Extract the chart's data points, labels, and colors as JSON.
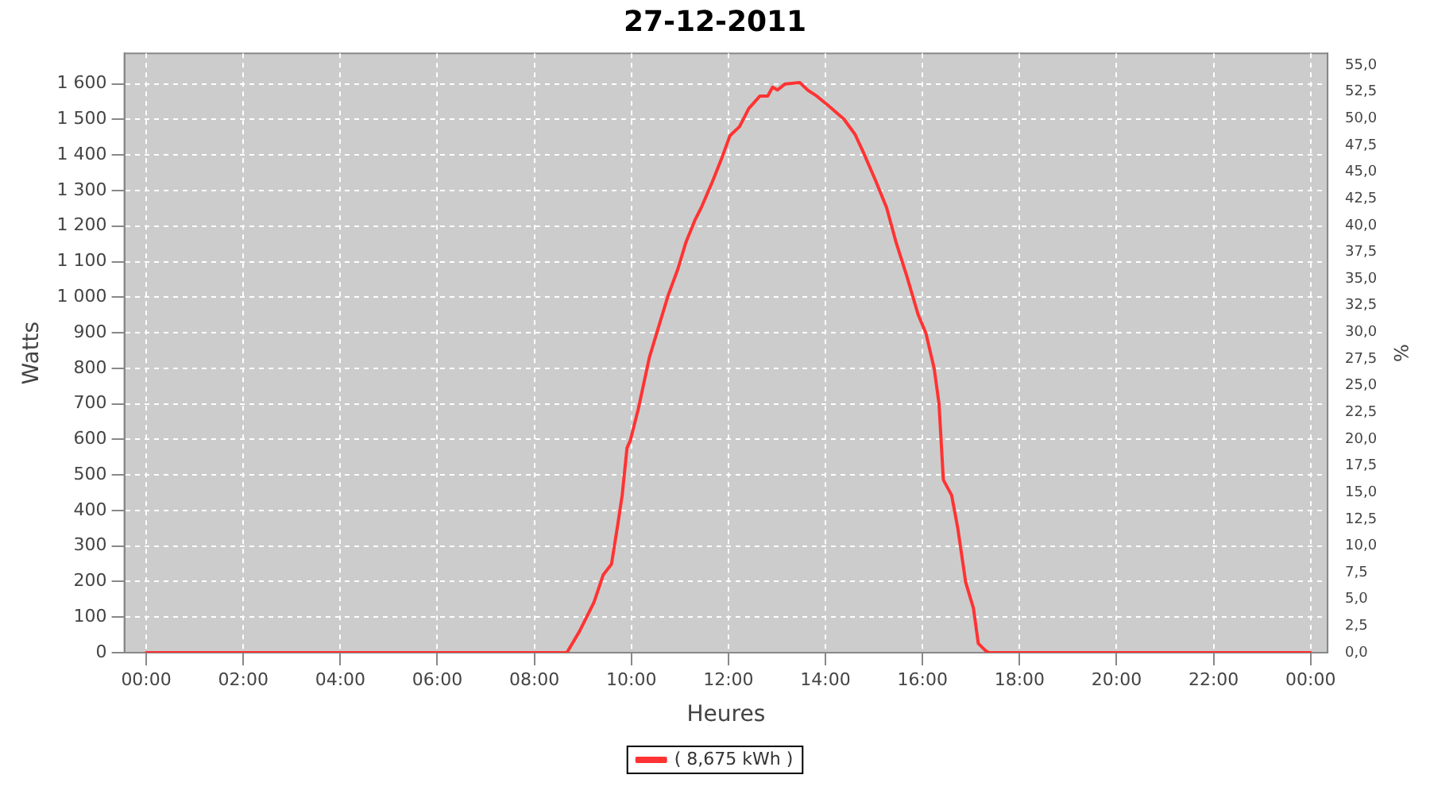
{
  "chart_data": {
    "type": "line",
    "title": "27-12-2011",
    "xlabel": "Heures",
    "ylabel": "Watts",
    "y2label": "%",
    "x": [
      0,
      8.67,
      8.93,
      9.23,
      9.42,
      9.59,
      9.72,
      9.81,
      9.91,
      9.98,
      10.14,
      10.37,
      10.56,
      10.76,
      10.96,
      11.12,
      11.31,
      11.44,
      11.67,
      11.87,
      12.03,
      12.23,
      12.42,
      12.65,
      12.81,
      12.91,
      13.01,
      13.17,
      13.47,
      13.63,
      13.82,
      14.05,
      14.38,
      14.61,
      14.77,
      15.03,
      15.26,
      15.45,
      15.68,
      15.91,
      16.07,
      16.24,
      16.34,
      16.43,
      16.6,
      16.73,
      16.89,
      17.05,
      17.15,
      17.31,
      17.38,
      24
    ],
    "series": [
      {
        "name": "( 8,675 kWh )",
        "color": "#ff3333",
        "values": [
          0,
          0,
          60,
          142,
          219,
          249,
          361,
          443,
          576,
          598,
          684,
          830,
          916,
          1006,
          1080,
          1153,
          1217,
          1252,
          1325,
          1394,
          1454,
          1480,
          1531,
          1566,
          1566,
          1591,
          1583,
          1600,
          1604,
          1583,
          1566,
          1540,
          1501,
          1458,
          1411,
          1329,
          1252,
          1157,
          1058,
          951,
          899,
          800,
          701,
          486,
          443,
          348,
          198,
          125,
          26,
          4,
          0,
          0
        ]
      }
    ],
    "xlim": [
      -0.45,
      24.35
    ],
    "xticks": [
      {
        "value": 0,
        "label": "00:00"
      },
      {
        "value": 2,
        "label": "02:00"
      },
      {
        "value": 4,
        "label": "04:00"
      },
      {
        "value": 6,
        "label": "06:00"
      },
      {
        "value": 8,
        "label": "08:00"
      },
      {
        "value": 10,
        "label": "10:00"
      },
      {
        "value": 12,
        "label": "12:00"
      },
      {
        "value": 14,
        "label": "14:00"
      },
      {
        "value": 16,
        "label": "16:00"
      },
      {
        "value": 18,
        "label": "18:00"
      },
      {
        "value": 20,
        "label": "20:00"
      },
      {
        "value": 22,
        "label": "22:00"
      },
      {
        "value": 24,
        "label": "00:00"
      }
    ],
    "ylim": [
      0,
      1686
    ],
    "yticks": [
      0,
      100,
      200,
      300,
      400,
      500,
      600,
      700,
      800,
      900,
      {
        "value": 1000,
        "label": "1 000"
      },
      {
        "value": 1100,
        "label": "1 100"
      },
      {
        "value": 1200,
        "label": "1 200"
      },
      {
        "value": 1300,
        "label": "1 300"
      },
      {
        "value": 1400,
        "label": "1 400"
      },
      {
        "value": 1500,
        "label": "1 500"
      },
      {
        "value": 1600,
        "label": "1 600"
      }
    ],
    "y2lim": [
      0,
      56.1
    ],
    "y2ticks": [
      {
        "value": 0,
        "label": "0,0"
      },
      {
        "value": 2.5,
        "label": "2,5"
      },
      {
        "value": 5,
        "label": "5,0"
      },
      {
        "value": 7.5,
        "label": "7,5"
      },
      {
        "value": 10,
        "label": "10,0"
      },
      {
        "value": 12.5,
        "label": "12,5"
      },
      {
        "value": 15,
        "label": "15,0"
      },
      {
        "value": 17.5,
        "label": "17,5"
      },
      {
        "value": 20,
        "label": "20,0"
      },
      {
        "value": 22.5,
        "label": "22,5"
      },
      {
        "value": 25,
        "label": "25,0"
      },
      {
        "value": 27.5,
        "label": "27,5"
      },
      {
        "value": 30,
        "label": "30,0"
      },
      {
        "value": 32.5,
        "label": "32,5"
      },
      {
        "value": 35,
        "label": "35,0"
      },
      {
        "value": 37.5,
        "label": "37,5"
      },
      {
        "value": 40,
        "label": "40,0"
      },
      {
        "value": 42.5,
        "label": "42,5"
      },
      {
        "value": 45,
        "label": "45,0"
      },
      {
        "value": 47.5,
        "label": "47,5"
      },
      {
        "value": 50,
        "label": "50,0"
      },
      {
        "value": 52.5,
        "label": "52,5"
      },
      {
        "value": 55,
        "label": "55,0"
      }
    ],
    "grid": true,
    "legend": "bottom",
    "marker": "none",
    "line_style": "solid"
  }
}
